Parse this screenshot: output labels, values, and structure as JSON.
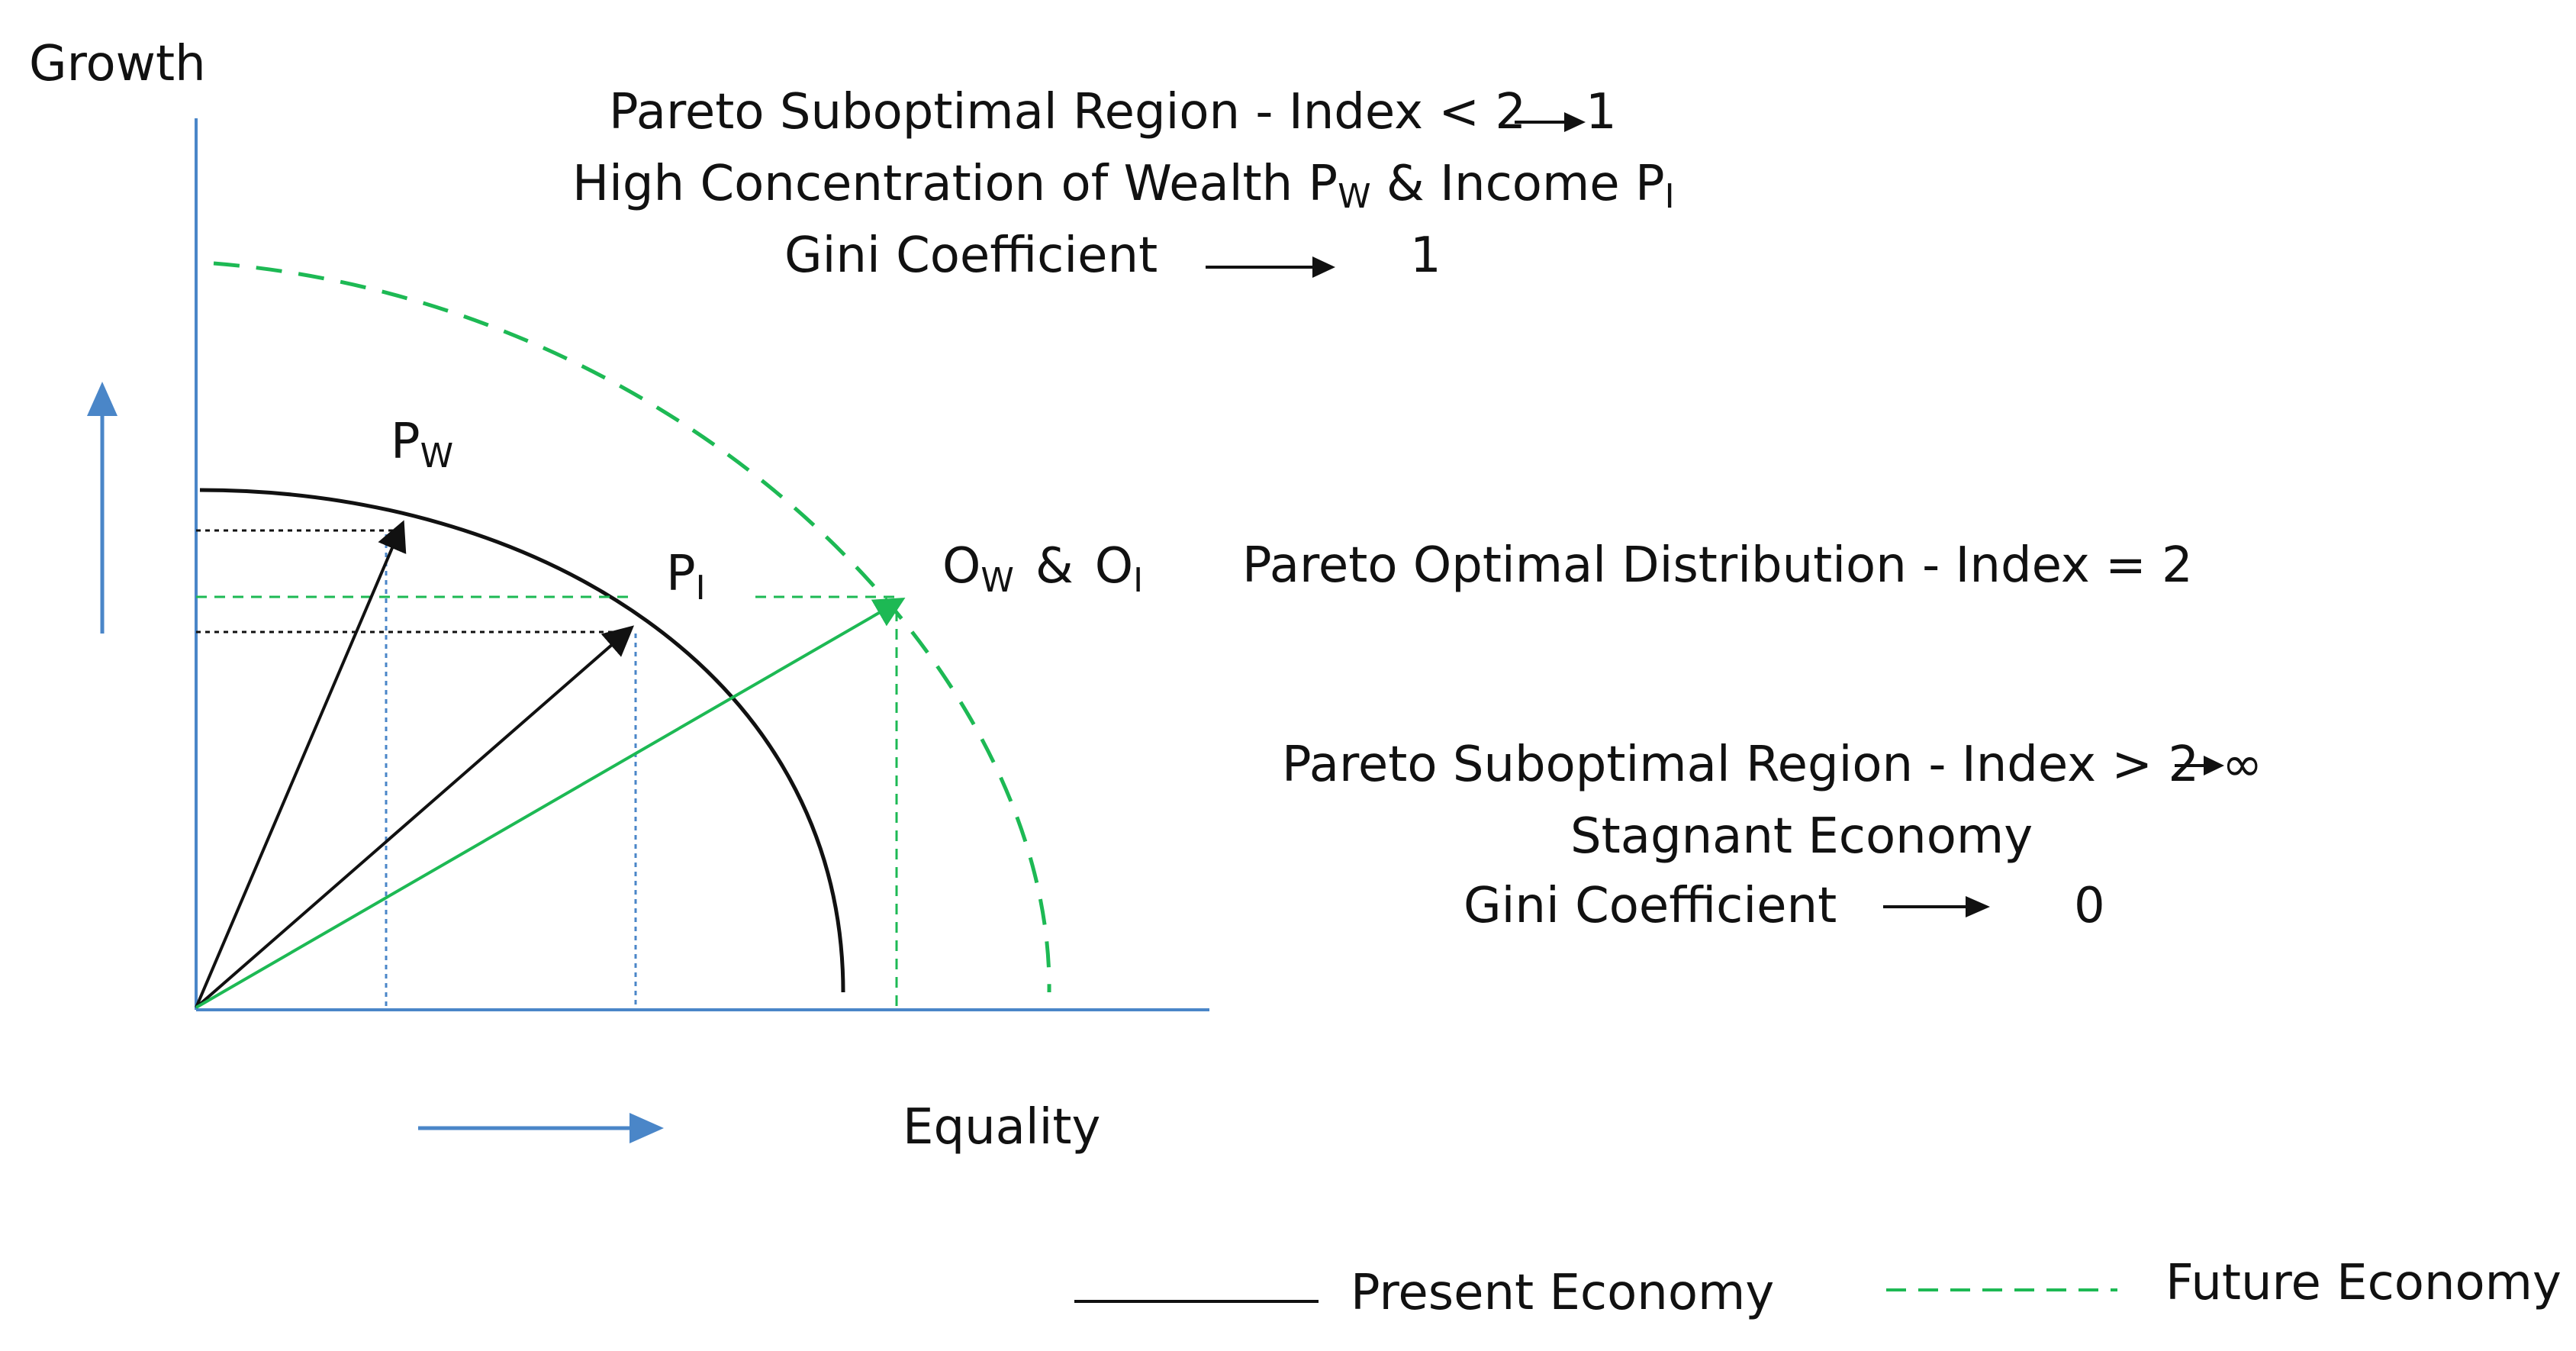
{
  "axes": {
    "y_label": "Growth",
    "x_label": "Equality"
  },
  "top_annotation": {
    "line1": "Pareto Suboptimal Region - Index < 2",
    "line1_value": "1",
    "line2_prefix": "High Concentration of Wealth P",
    "line2_sub1": "W",
    "line2_mid": " & Income P",
    "line2_sub2": "I",
    "line3_label": "Gini Coefficient",
    "line3_value": "1"
  },
  "middle_annotation": {
    "text": "Pareto Optimal Distribution - Index = 2"
  },
  "bottom_annotation": {
    "line1": "Pareto Suboptimal Region - Index > 2",
    "line1_value": "∞",
    "line2": "Stagnant Economy",
    "line3_label": "Gini Coefficient",
    "line3_value": "0"
  },
  "points": {
    "pw": {
      "letter": "P",
      "sub": "W"
    },
    "pi": {
      "letter": "P",
      "sub": "I"
    },
    "opt": {
      "letter1": "O",
      "sub1": "W",
      "amp": "&",
      "letter2": "O",
      "sub2": "I"
    }
  },
  "legend": {
    "present": "Present Economy",
    "future": "Future Economy"
  },
  "colors": {
    "axis": "#4a86c8",
    "present": "#111111",
    "future": "#1db954",
    "arrow_blue": "#4a86c8"
  }
}
